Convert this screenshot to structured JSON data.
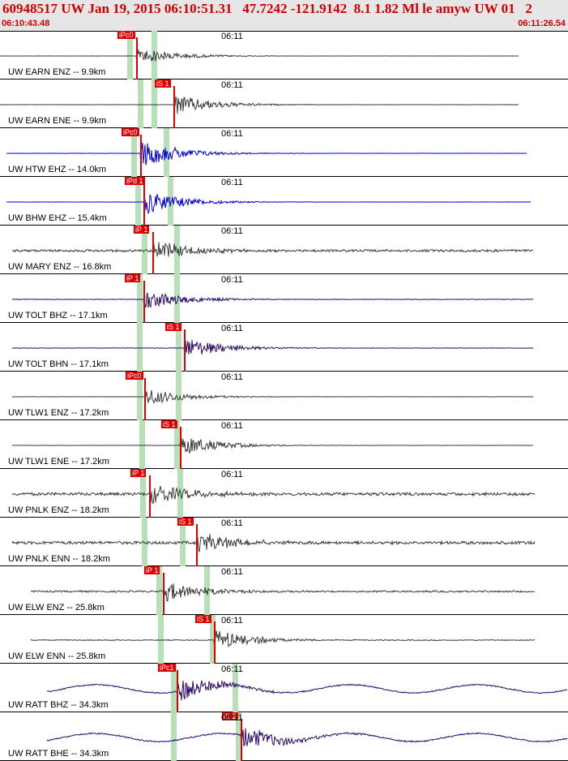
{
  "header": {
    "title": "60948517 UW Jan 19, 2015 06:10:51.31   47.7242 -121.9142  8.1 1.82 Ml le amyw UW 01   2",
    "start_time": "06:10:43.48",
    "end_time": "06:11:26.54"
  },
  "colors": {
    "header_bg": "#e6e6e6",
    "title_text": "#d00000",
    "pick": "#e00000",
    "pick_band": "#b8e0b8",
    "trace_gray": "#3a3a3a",
    "trace_blue": "#0000e0",
    "trace_purple": "#2a0a6a"
  },
  "time_tick_label": "06:11",
  "traces": [
    {
      "label": "UW EARN ENZ -- 9.9km",
      "color": "#3a3a3a",
      "pick": "iPc0",
      "pickX": 169,
      "band": 160,
      "band2": 190,
      "amp": 0.5,
      "noise": 0.02,
      "start": 0,
      "end": 640
    },
    {
      "label": "UW EARN ENE -- 9.9km",
      "color": "#3a3a3a",
      "pick": "iS 1",
      "pickX": 215,
      "band": 173,
      "band2": 190,
      "amp": 0.6,
      "noise": 0.04,
      "start": 0,
      "end": 640
    },
    {
      "label": "UW HTW EHZ -- 14.0km",
      "color": "#0000e0",
      "pick": "iPc0",
      "pickX": 174,
      "band": 165,
      "band2": 205,
      "amp": 0.8,
      "noise": 0.03,
      "start": 8,
      "end": 650
    },
    {
      "label": "UW BHW EHZ -- 15.4km",
      "color": "#0000e0",
      "pick": "iPd 1",
      "pickX": 178,
      "band": 170,
      "band2": 210,
      "amp": 0.7,
      "noise": 0.02,
      "start": 8,
      "end": 655
    },
    {
      "label": "UW MARY ENZ -- 16.8km",
      "color": "#3a3a3a",
      "pick": "iP 1",
      "pickX": 189,
      "band": 178,
      "band2": 218,
      "amp": 0.6,
      "noise": 0.35,
      "start": 15,
      "end": 658
    },
    {
      "label": "UW TOLT BHZ -- 17.1km",
      "color": "#2a0a6a",
      "pick": "iP 1",
      "pickX": 178,
      "band": 172,
      "band2": 218,
      "amp": 0.6,
      "noise": 0.08,
      "start": 15,
      "end": 658
    },
    {
      "label": "UW TOLT BHN -- 17.1km",
      "color": "#2a0a6a",
      "pick": "iS 1",
      "pickX": 228,
      "band": 172,
      "band2": 220,
      "amp": 0.6,
      "noise": 0.06,
      "start": 15,
      "end": 658
    },
    {
      "label": "UW TLW1 ENZ -- 17.2km",
      "color": "#3a3a3a",
      "pick": "iPc0",
      "pickX": 179,
      "band": 172,
      "band2": 220,
      "amp": 0.5,
      "noise": 0.03,
      "start": 15,
      "end": 658
    },
    {
      "label": "UW TLW1 ENE -- 17.2km",
      "color": "#3a3a3a",
      "pick": "iS 1",
      "pickX": 223,
      "band": 175,
      "band2": 218,
      "amp": 0.6,
      "noise": 0.03,
      "start": 15,
      "end": 658
    },
    {
      "label": "UW PNLK ENZ -- 18.2km",
      "color": "#3a3a3a",
      "pick": "iP 1",
      "pickX": 185,
      "band": 176,
      "band2": 222,
      "amp": 0.6,
      "noise": 0.45,
      "start": 15,
      "end": 660
    },
    {
      "label": "UW PNLK ENN -- 18.2km",
      "color": "#3a3a3a",
      "pick": "iS 1",
      "pickX": 243,
      "band": 178,
      "band2": 225,
      "amp": 0.6,
      "noise": 0.45,
      "start": 15,
      "end": 660
    },
    {
      "label": "UW ELW ENZ -- 25.8km",
      "color": "#3a3a3a",
      "pick": "iP 1",
      "pickX": 202,
      "band": 196,
      "band2": 255,
      "amp": 0.6,
      "noise": 0.25,
      "start": 38,
      "end": 660
    },
    {
      "label": "UW ELW ENN -- 25.8km",
      "color": "#3a3a3a",
      "pick": "iS 1",
      "pickX": 265,
      "band": 198,
      "band2": 262,
      "amp": 0.6,
      "noise": 0.12,
      "start": 38,
      "end": 660
    },
    {
      "label": "UW RATT BHZ -- 34.3km",
      "color": "#2a0a6a",
      "pick": "iPc1",
      "pickX": 219,
      "band": 214,
      "band2": 290,
      "amp": 0.7,
      "noise": 0.18,
      "start": 58,
      "end": 700
    },
    {
      "label": "UW RATT BHE -- 34.3km",
      "color": "#2a0a6a",
      "pick": "iS 2",
      "pickX": 298,
      "band": 214,
      "band2": 294,
      "amp": 0.7,
      "noise": 0.2,
      "start": 58,
      "end": 700
    }
  ]
}
